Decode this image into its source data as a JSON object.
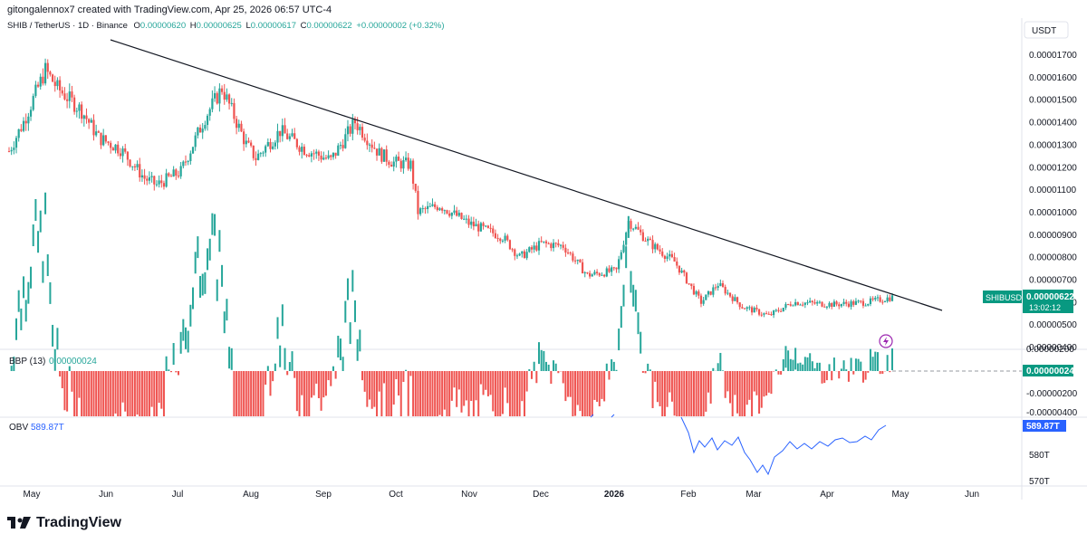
{
  "header": {
    "attribution": "gitongalennox7 created with TradingView.com, Apr 25, 2026 06:57 UTC-4"
  },
  "ohlc": {
    "symbol": "SHIB / TetherUS · 1D · Binance",
    "o_label": "O",
    "o": "0.00000620",
    "h_label": "H",
    "h": "0.00000625",
    "l_label": "L",
    "l": "0.00000617",
    "c_label": "C",
    "c": "0.00000622",
    "change": "+0.00000002 (+0.32%)"
  },
  "price_axis": {
    "currency": "USDT",
    "ticks": [
      "0.00001700",
      "0.00001600",
      "0.00001500",
      "0.00001400",
      "0.00001300",
      "0.00001200",
      "0.00001100",
      "0.00001000",
      "0.00000900",
      "0.00000800",
      "0.00000700",
      "0.00000600",
      "0.00000500",
      "0.00000400"
    ],
    "last_label": "SHIBUSDT",
    "last_price": "0.00000622",
    "countdown": "13:02:12"
  },
  "bbp": {
    "label": "BBP (13)",
    "value": "0.00000024",
    "ticks": [
      "0.00000200",
      "-0.00000200",
      "-0.00000400"
    ]
  },
  "obv": {
    "label": "OBV",
    "value": "589.87T",
    "ticks": [
      "580T",
      "570T"
    ]
  },
  "months": [
    "May",
    "Jun",
    "Jul",
    "Aug",
    "Sep",
    "Oct",
    "Nov",
    "Dec",
    "2026",
    "Feb",
    "Mar",
    "Apr",
    "May",
    "Jun"
  ],
  "colors": {
    "up": "#26a69a",
    "down": "#ef5350",
    "obv": "#2962ff",
    "trendline": "#131722",
    "label_bg": "#089981"
  },
  "footer": {
    "logo_text": "TradingView"
  },
  "chart_data": {
    "type": "candlestick",
    "title": "SHIB / TetherUS · 1D · Binance",
    "ylim": [
      4e-06,
      1.78e-05
    ],
    "close_series": [
      {
        "date": "2025-04-25",
        "close": 1.27e-05
      },
      {
        "date": "2025-05-01",
        "close": 1.4e-05
      },
      {
        "date": "2025-05-10",
        "close": 1.63e-05
      },
      {
        "date": "2025-05-15",
        "close": 1.55e-05
      },
      {
        "date": "2025-05-25",
        "close": 1.45e-05
      },
      {
        "date": "2025-06-01",
        "close": 1.33e-05
      },
      {
        "date": "2025-06-10",
        "close": 1.28e-05
      },
      {
        "date": "2025-06-20",
        "close": 1.15e-05
      },
      {
        "date": "2025-06-25",
        "close": 1.12e-05
      },
      {
        "date": "2025-07-05",
        "close": 1.18e-05
      },
      {
        "date": "2025-07-15",
        "close": 1.42e-05
      },
      {
        "date": "2025-07-22",
        "close": 1.55e-05
      },
      {
        "date": "2025-08-01",
        "close": 1.3e-05
      },
      {
        "date": "2025-08-05",
        "close": 1.24e-05
      },
      {
        "date": "2025-08-15",
        "close": 1.36e-05
      },
      {
        "date": "2025-08-25",
        "close": 1.28e-05
      },
      {
        "date": "2025-09-05",
        "close": 1.23e-05
      },
      {
        "date": "2025-09-15",
        "close": 1.4e-05
      },
      {
        "date": "2025-09-25",
        "close": 1.26e-05
      },
      {
        "date": "2025-10-01",
        "close": 1.22e-05
      },
      {
        "date": "2025-10-08",
        "close": 1.21e-05
      },
      {
        "date": "2025-10-11",
        "close": 1e-05
      },
      {
        "date": "2025-10-20",
        "close": 1.03e-05
      },
      {
        "date": "2025-11-01",
        "close": 9.5e-06
      },
      {
        "date": "2025-11-15",
        "close": 8.9e-06
      },
      {
        "date": "2025-11-22",
        "close": 8e-06
      },
      {
        "date": "2025-12-01",
        "close": 8.6e-06
      },
      {
        "date": "2025-12-10",
        "close": 8.5e-06
      },
      {
        "date": "2025-12-20",
        "close": 7.2e-06
      },
      {
        "date": "2026-01-01",
        "close": 7.4e-06
      },
      {
        "date": "2026-01-06",
        "close": 9.6e-06
      },
      {
        "date": "2026-01-15",
        "close": 8.6e-06
      },
      {
        "date": "2026-01-25",
        "close": 7.8e-06
      },
      {
        "date": "2026-02-05",
        "close": 6e-06
      },
      {
        "date": "2026-02-12",
        "close": 6.8e-06
      },
      {
        "date": "2026-02-22",
        "close": 5.8e-06
      },
      {
        "date": "2026-03-05",
        "close": 5.4e-06
      },
      {
        "date": "2026-03-15",
        "close": 6e-06
      },
      {
        "date": "2026-04-01",
        "close": 5.9e-06
      },
      {
        "date": "2026-04-15",
        "close": 6e-06
      },
      {
        "date": "2026-04-25",
        "close": 6.22e-06
      }
    ],
    "trendline": [
      {
        "date": "2025-05-25",
        "price": 1.75e-05
      },
      {
        "date": "2026-05-15",
        "price": 5.5e-06
      }
    ]
  }
}
